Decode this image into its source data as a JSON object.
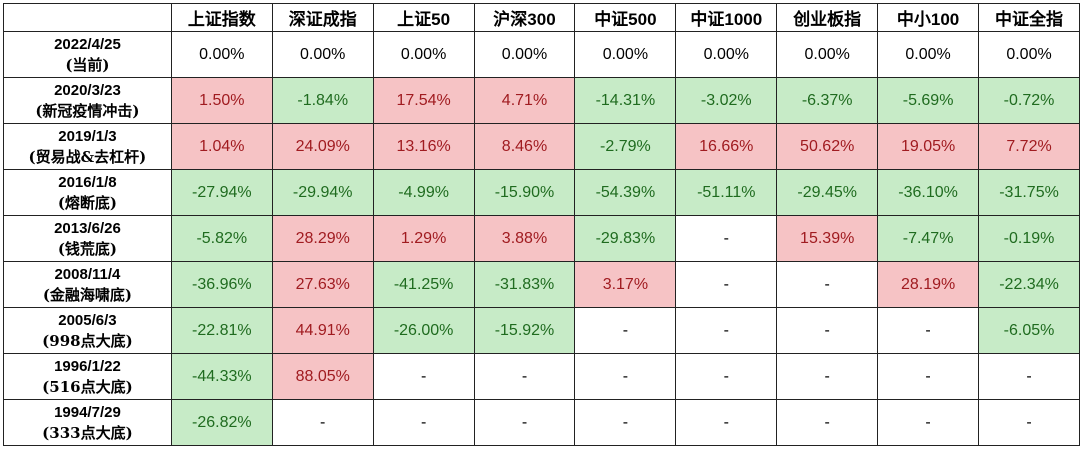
{
  "headers": [
    "",
    "上证指数",
    "深证成指",
    "上证50",
    "沪深300",
    "中证500",
    "中证1000",
    "创业板指",
    "中小100",
    "中证全指"
  ],
  "rows": [
    {
      "date": "2022/4/25",
      "note": "(当前)",
      "cells": [
        "0.00%",
        "0.00%",
        "0.00%",
        "0.00%",
        "0.00%",
        "0.00%",
        "0.00%",
        "0.00%",
        "0.00%"
      ]
    },
    {
      "date": "2020/3/23",
      "note": "(新冠疫情冲击)",
      "cells": [
        "1.50%",
        "-1.84%",
        "17.54%",
        "4.71%",
        "-14.31%",
        "-3.02%",
        "-6.37%",
        "-5.69%",
        "-0.72%"
      ]
    },
    {
      "date": "2019/1/3",
      "note": "(贸易战&去杠杆)",
      "cells": [
        "1.04%",
        "24.09%",
        "13.16%",
        "8.46%",
        "-2.79%",
        "16.66%",
        "50.62%",
        "19.05%",
        "7.72%"
      ]
    },
    {
      "date": "2016/1/8",
      "note": "(熔断底)",
      "cells": [
        "-27.94%",
        "-29.94%",
        "-4.99%",
        "-15.90%",
        "-54.39%",
        "-51.11%",
        "-29.45%",
        "-36.10%",
        "-31.75%"
      ]
    },
    {
      "date": "2013/6/26",
      "note": "(钱荒底)",
      "cells": [
        "-5.82%",
        "28.29%",
        "1.29%",
        "3.88%",
        "-29.83%",
        "-",
        "15.39%",
        "-7.47%",
        "-0.19%"
      ]
    },
    {
      "date": "2008/11/4",
      "note": "(金融海啸底)",
      "cells": [
        "-36.96%",
        "27.63%",
        "-41.25%",
        "-31.83%",
        "3.17%",
        "-",
        "-",
        "28.19%",
        "-22.34%"
      ]
    },
    {
      "date": "2005/6/3",
      "note": "(998点大底)",
      "cells": [
        "-22.81%",
        "44.91%",
        "-26.00%",
        "-15.92%",
        "-",
        "-",
        "-",
        "-",
        "-6.05%"
      ]
    },
    {
      "date": "1996/1/22",
      "note": "(516点大底)",
      "cells": [
        "-44.33%",
        "88.05%",
        "-",
        "-",
        "-",
        "-",
        "-",
        "-",
        "-"
      ]
    },
    {
      "date": "1994/7/29",
      "note": "(333点大底)",
      "cells": [
        "-26.82%",
        "-",
        "-",
        "-",
        "-",
        "-",
        "-",
        "-",
        "-"
      ]
    }
  ],
  "colors": {
    "negative_bg": "#c7ebc7",
    "negative_text": "#1f6b1f",
    "positive_bg": "#f6c3c5",
    "positive_text": "#a01b20",
    "border": "#222222"
  }
}
